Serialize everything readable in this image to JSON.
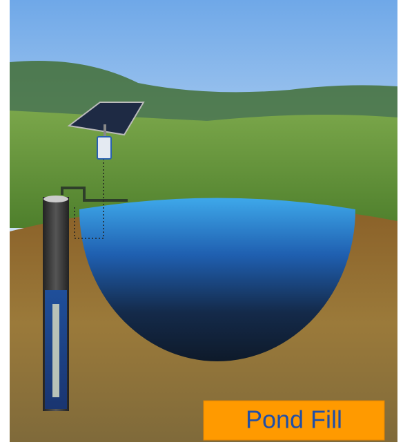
{
  "label": "Pond Fill"
}
